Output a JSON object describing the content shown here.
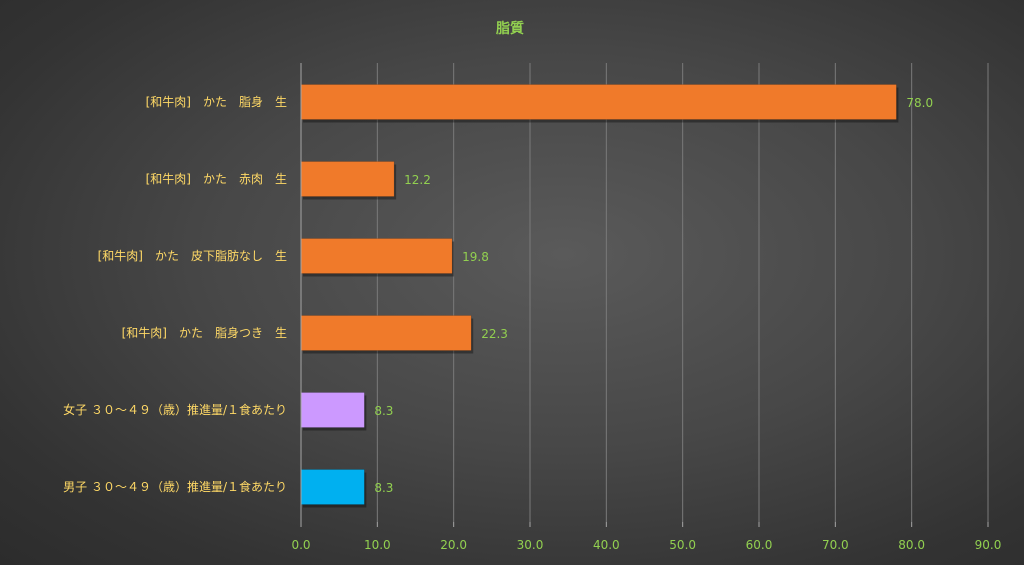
{
  "chart_data": {
    "type": "bar",
    "orientation": "horizontal",
    "title": "脂質",
    "categories": [
      "[和牛肉]　かた　脂身　生",
      "[和牛肉]　かた　赤肉　生",
      "[和牛肉]　かた　皮下脂肪なし　生",
      "[和牛肉]　かた　脂身つき　生",
      "女子 ３０～４９（歳）推進量/１食あたり",
      "男子 ３０～４９（歳）推進量/１食あたり"
    ],
    "values": [
      78.0,
      12.2,
      19.8,
      22.3,
      8.3,
      8.3
    ],
    "value_labels": [
      "78.0",
      "12.2",
      "19.8",
      "22.3",
      "8.3",
      "8.3"
    ],
    "bar_colors": [
      "#f07a2a",
      "#f07a2a",
      "#f07a2a",
      "#f07a2a",
      "#cc99ff",
      "#00b0f0"
    ],
    "xlim": [
      0,
      90
    ],
    "x_ticks": [
      "0.0",
      "10.0",
      "20.0",
      "30.0",
      "40.0",
      "50.0",
      "60.0",
      "70.0",
      "80.0",
      "90.0"
    ],
    "grid": true,
    "legend": "none",
    "colors": {
      "title": "#92d050",
      "category_label": "#ffd966",
      "value_label": "#92d050",
      "tick_label": "#92d050",
      "gridline": "#7a7a7a",
      "axis": "#a6a6a6"
    }
  }
}
